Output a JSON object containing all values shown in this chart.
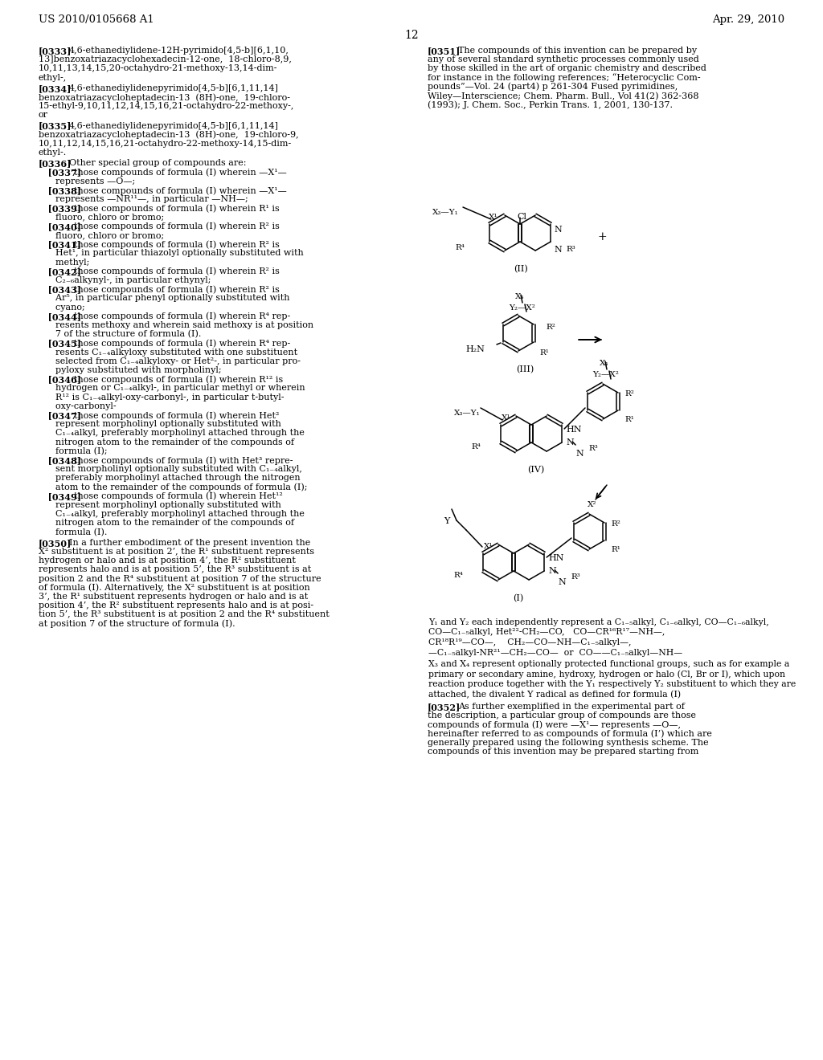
{
  "page_number": "12",
  "header_left": "US 2010/0105668 A1",
  "header_right": "Apr. 29, 2010",
  "bg": "#ffffff"
}
